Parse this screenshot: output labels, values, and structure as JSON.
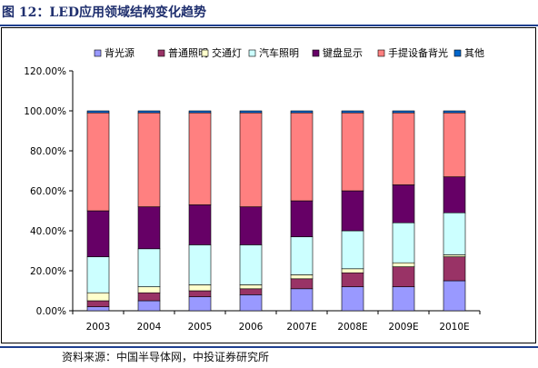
{
  "header": {
    "title": "图 12：LED应用领域结构变化趋势"
  },
  "footer": {
    "source": "资料来源：中国半导体网，中投证券研究所"
  },
  "chart_data": {
    "type": "bar",
    "stacked": true,
    "categories": [
      "2003",
      "2004",
      "2005",
      "2006",
      "2007E",
      "2008E",
      "2009E",
      "2010E"
    ],
    "ylim": [
      0,
      120
    ],
    "y_ticks": [
      "0.00%",
      "20.00%",
      "40.00%",
      "60.00%",
      "80.00%",
      "100.00%",
      "120.00%"
    ],
    "legend_position": "top",
    "series": [
      {
        "name": "背光源",
        "color": "#9999ff",
        "values": [
          2,
          5,
          7,
          8,
          11,
          12,
          12,
          15
        ]
      },
      {
        "name": "普通照明",
        "color": "#993366",
        "values": [
          3,
          4,
          3,
          3,
          5,
          7,
          10,
          12
        ]
      },
      {
        "name": "交通灯",
        "color": "#ffffcc",
        "values": [
          4,
          3,
          3,
          2,
          2,
          2,
          2,
          1
        ]
      },
      {
        "name": "汽车照明",
        "color": "#ccffff",
        "values": [
          18,
          19,
          20,
          20,
          19,
          19,
          20,
          21
        ]
      },
      {
        "name": "键盘显示",
        "color": "#660066",
        "values": [
          23,
          21,
          20,
          19,
          18,
          20,
          19,
          18
        ]
      },
      {
        "name": "手提设备背光",
        "color": "#ff8080",
        "values": [
          49,
          47,
          46,
          47,
          44,
          39,
          36,
          32
        ]
      },
      {
        "name": "其他",
        "color": "#0066cc",
        "values": [
          1,
          1,
          1,
          1,
          1,
          1,
          1,
          1
        ]
      }
    ]
  }
}
